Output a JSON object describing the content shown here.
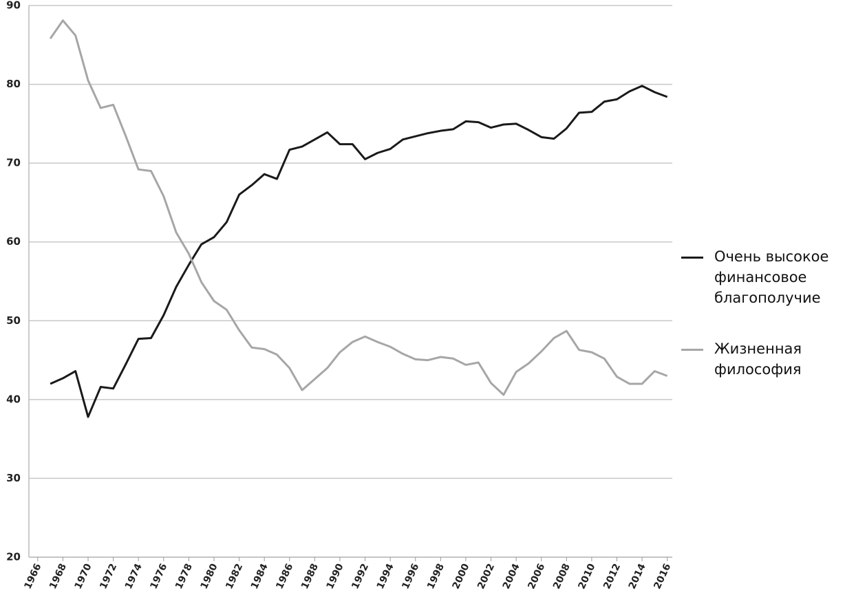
{
  "chart_data": {
    "type": "line",
    "x": [
      1967,
      1968,
      1969,
      1970,
      1971,
      1972,
      1973,
      1974,
      1975,
      1976,
      1977,
      1978,
      1979,
      1980,
      1981,
      1982,
      1983,
      1984,
      1985,
      1986,
      1987,
      1988,
      1989,
      1990,
      1991,
      1992,
      1993,
      1994,
      1995,
      1996,
      1997,
      1998,
      1999,
      2000,
      2001,
      2002,
      2003,
      2004,
      2005,
      2006,
      2007,
      2008,
      2009,
      2010,
      2011,
      2012,
      2013,
      2014,
      2015,
      2016
    ],
    "series": [
      {
        "name": "Очень высокое финансовое благополучие",
        "color": "#1a1a1a",
        "values": [
          42.0,
          42.7,
          43.6,
          37.8,
          41.6,
          41.4,
          44.5,
          47.7,
          47.8,
          50.7,
          54.3,
          57.1,
          59.7,
          60.6,
          62.5,
          66.0,
          67.2,
          68.6,
          68.0,
          71.7,
          72.1,
          73.0,
          73.9,
          72.4,
          72.4,
          70.5,
          71.3,
          71.8,
          73.0,
          73.4,
          73.8,
          74.1,
          74.3,
          75.3,
          75.2,
          74.5,
          74.9,
          75.0,
          74.2,
          73.3,
          73.1,
          74.4,
          76.4,
          76.5,
          77.8,
          78.1,
          79.1,
          79.8,
          79.0,
          78.4
        ]
      },
      {
        "name": "Жизненная философия",
        "color": "#a6a6a6",
        "values": [
          85.8,
          88.1,
          86.2,
          80.5,
          77.0,
          77.4,
          73.4,
          69.2,
          69.0,
          65.8,
          61.2,
          58.5,
          54.9,
          52.5,
          51.4,
          48.8,
          46.6,
          46.4,
          45.7,
          44.0,
          41.2,
          42.6,
          44.0,
          46.0,
          47.3,
          48.0,
          47.3,
          46.7,
          45.8,
          45.1,
          45.0,
          45.4,
          45.2,
          44.4,
          44.7,
          42.1,
          40.6,
          43.5,
          44.6,
          46.1,
          47.8,
          48.7,
          46.3,
          46.0,
          45.2,
          42.9,
          42.0,
          42.0,
          43.6,
          43.0
        ]
      }
    ],
    "xlim": [
      1965.3,
      2016.4
    ],
    "xticks": [
      1966,
      1968,
      1970,
      1972,
      1974,
      1976,
      1978,
      1980,
      1982,
      1984,
      1986,
      1988,
      1990,
      1992,
      1994,
      1996,
      1998,
      2000,
      2002,
      2004,
      2006,
      2008,
      2010,
      2012,
      2014,
      2016
    ],
    "ylim": [
      20,
      90
    ],
    "yticks": [
      20,
      30,
      40,
      50,
      60,
      70,
      80,
      90
    ],
    "grid": true,
    "legend": "right"
  }
}
